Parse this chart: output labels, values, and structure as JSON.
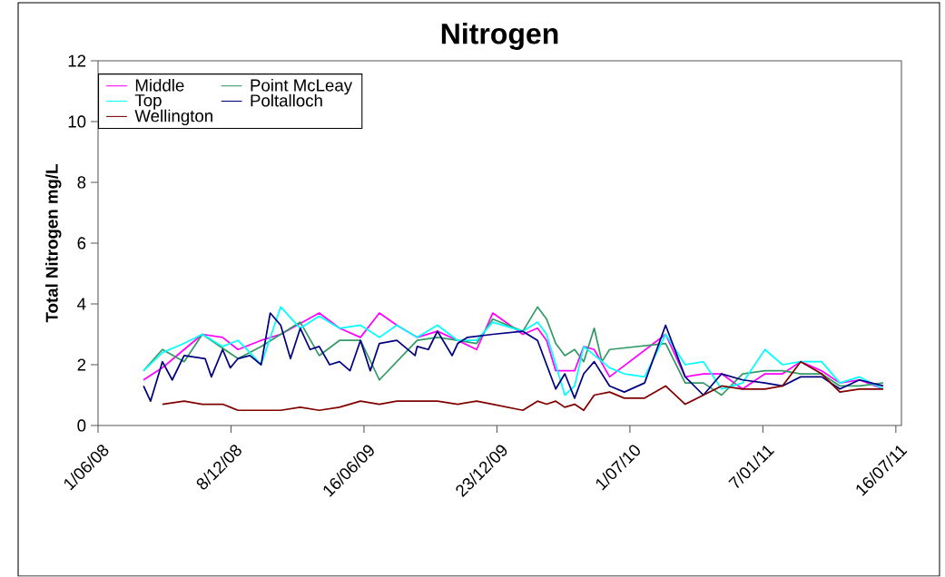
{
  "chart_data": {
    "type": "line",
    "title": "Nitrogen",
    "ylabel": "Total Nitrogen mg/L",
    "xlim": [
      "2008-06-01",
      "2011-07-24"
    ],
    "ylim": [
      0,
      12
    ],
    "yticks": [
      0,
      2,
      4,
      6,
      8,
      10,
      12
    ],
    "xticks": [
      {
        "value": "2008-06-01",
        "label": "1/06/08"
      },
      {
        "value": "2008-12-08",
        "label": "8/12/08"
      },
      {
        "value": "2009-06-16",
        "label": "16/06/09"
      },
      {
        "value": "2009-12-23",
        "label": "23/12/09"
      },
      {
        "value": "2010-07-01",
        "label": "1/07/10"
      },
      {
        "value": "2011-01-07",
        "label": "7/01/11"
      },
      {
        "value": "2011-07-16",
        "label": "16/07/11"
      }
    ],
    "legend": "top left",
    "series": [
      {
        "name": "Middle",
        "color": "#ff00ff",
        "x": [
          "2008-08-05",
          "2008-09-01",
          "2008-10-02",
          "2008-10-28",
          "2008-11-26",
          "2008-12-18",
          "2009-01-20",
          "2009-02-17",
          "2009-04-13",
          "2009-05-12",
          "2009-06-11",
          "2009-07-08",
          "2009-08-02",
          "2009-08-31",
          "2009-09-29",
          "2009-10-28",
          "2009-11-24",
          "2009-12-17",
          "2010-01-29",
          "2010-02-19",
          "2010-03-04",
          "2010-03-17",
          "2010-04-13",
          "2010-04-26",
          "2010-05-11",
          "2010-06-02",
          "2010-08-21",
          "2010-09-18",
          "2010-10-14",
          "2010-11-09",
          "2010-12-09",
          "2011-01-10",
          "2011-02-04",
          "2011-03-02",
          "2011-04-01",
          "2011-04-27",
          "2011-05-25",
          "2011-06-28"
        ],
        "values": [
          1.5,
          1.9,
          2.5,
          3.0,
          2.9,
          2.5,
          2.8,
          3.0,
          3.7,
          3.2,
          2.9,
          3.7,
          3.3,
          2.9,
          3.1,
          2.8,
          2.5,
          3.7,
          3.0,
          3.2,
          2.8,
          1.8,
          1.8,
          2.6,
          2.5,
          1.6,
          3.0,
          1.6,
          1.7,
          1.7,
          1.2,
          1.7,
          1.7,
          2.1,
          1.8,
          1.4,
          1.5,
          1.2
        ]
      },
      {
        "name": "Point McLeay",
        "color": "#339966",
        "x": [
          "2008-08-05",
          "2008-09-01",
          "2008-10-02",
          "2008-10-28",
          "2008-12-18",
          "2009-01-20",
          "2009-03-17",
          "2009-04-13",
          "2009-05-12",
          "2009-06-11",
          "2009-07-08",
          "2009-08-31",
          "2009-09-29",
          "2009-10-28",
          "2009-11-24",
          "2009-12-17",
          "2010-01-29",
          "2010-02-19",
          "2010-03-04",
          "2010-03-17",
          "2010-03-30",
          "2010-04-13",
          "2010-04-26",
          "2010-05-11",
          "2010-05-22",
          "2010-06-02",
          "2010-08-21",
          "2010-09-18",
          "2010-10-14",
          "2010-11-09",
          "2010-12-09",
          "2011-01-10",
          "2011-02-04",
          "2011-03-02",
          "2011-04-01",
          "2011-04-27",
          "2011-05-25",
          "2011-06-28"
        ],
        "values": [
          1.8,
          2.5,
          2.1,
          3.0,
          2.2,
          2.6,
          3.4,
          2.3,
          2.8,
          2.8,
          1.5,
          2.8,
          2.9,
          2.8,
          2.7,
          3.5,
          3.1,
          3.9,
          3.5,
          2.7,
          2.3,
          2.5,
          2.1,
          3.2,
          2.1,
          2.5,
          2.7,
          1.4,
          1.4,
          1.0,
          1.7,
          1.8,
          1.8,
          1.7,
          1.7,
          1.3,
          1.3,
          1.4
        ]
      },
      {
        "name": "Top",
        "color": "#00ffff",
        "x": [
          "2008-08-05",
          "2008-09-01",
          "2008-10-02",
          "2008-10-28",
          "2008-11-26",
          "2008-12-18",
          "2009-01-04",
          "2009-01-20",
          "2009-02-17",
          "2009-03-17",
          "2009-04-13",
          "2009-05-12",
          "2009-06-11",
          "2009-07-08",
          "2009-08-02",
          "2009-08-31",
          "2009-09-29",
          "2009-10-28",
          "2009-11-24",
          "2009-12-17",
          "2010-01-29",
          "2010-02-19",
          "2010-03-04",
          "2010-03-30",
          "2010-04-13",
          "2010-04-26",
          "2010-06-02",
          "2010-06-23",
          "2010-07-22",
          "2010-08-21",
          "2010-09-18",
          "2010-10-14",
          "2010-11-09",
          "2010-12-09",
          "2011-01-10",
          "2011-02-04",
          "2011-03-02",
          "2011-04-01",
          "2011-04-27",
          "2011-05-25",
          "2011-06-28"
        ],
        "values": [
          1.8,
          2.4,
          2.7,
          3.0,
          2.6,
          2.8,
          2.4,
          2.0,
          3.9,
          3.2,
          3.6,
          3.2,
          3.3,
          2.9,
          3.3,
          2.9,
          3.3,
          2.8,
          2.8,
          3.4,
          3.1,
          3.4,
          3.0,
          1.0,
          1.3,
          2.6,
          1.9,
          1.7,
          1.6,
          3.0,
          2.0,
          2.1,
          1.2,
          1.4,
          2.5,
          2.0,
          2.1,
          2.1,
          1.4,
          1.6,
          1.2
        ]
      },
      {
        "name": "Poltalloch",
        "color": "#000080",
        "x": [
          "2008-08-05",
          "2008-08-15",
          "2008-09-01",
          "2008-09-15",
          "2008-10-02",
          "2008-11-01",
          "2008-11-10",
          "2008-11-26",
          "2008-12-07",
          "2008-12-18",
          "2009-01-04",
          "2009-01-20",
          "2009-02-02",
          "2009-02-17",
          "2009-03-03",
          "2009-03-17",
          "2009-03-31",
          "2009-04-13",
          "2009-04-28",
          "2009-05-12",
          "2009-05-27",
          "2009-06-11",
          "2009-06-25",
          "2009-07-08",
          "2009-08-02",
          "2009-08-28",
          "2009-08-31",
          "2009-09-16",
          "2009-09-29",
          "2009-10-20",
          "2009-10-28",
          "2009-11-11",
          "2009-12-17",
          "2010-01-29",
          "2010-02-19",
          "2010-03-04",
          "2010-03-17",
          "2010-03-30",
          "2010-04-13",
          "2010-04-26",
          "2010-05-11",
          "2010-06-02",
          "2010-06-23",
          "2010-07-22",
          "2010-08-21",
          "2010-09-18",
          "2010-10-14",
          "2010-11-09",
          "2010-12-09",
          "2011-01-10",
          "2011-02-04",
          "2011-03-02",
          "2011-04-01",
          "2011-04-27",
          "2011-05-25",
          "2011-06-28"
        ],
        "values": [
          1.3,
          0.8,
          2.1,
          1.5,
          2.3,
          2.2,
          1.6,
          2.5,
          1.9,
          2.2,
          2.3,
          2.0,
          3.7,
          3.3,
          2.2,
          3.2,
          2.5,
          2.6,
          2.0,
          2.1,
          1.8,
          2.8,
          1.8,
          2.7,
          2.8,
          2.3,
          2.6,
          2.5,
          3.1,
          2.3,
          2.7,
          2.9,
          3.0,
          3.1,
          2.8,
          2.0,
          1.2,
          1.7,
          0.9,
          1.7,
          2.1,
          1.3,
          1.1,
          1.4,
          3.3,
          1.6,
          1.0,
          1.7,
          1.5,
          1.4,
          1.3,
          1.6,
          1.6,
          1.2,
          1.5,
          1.3
        ]
      },
      {
        "name": "Wellington",
        "color": "#800000",
        "x": [
          "2008-09-01",
          "2008-10-02",
          "2008-10-28",
          "2008-11-26",
          "2008-12-18",
          "2009-01-20",
          "2009-02-17",
          "2009-03-17",
          "2009-04-13",
          "2009-05-12",
          "2009-06-11",
          "2009-07-08",
          "2009-08-02",
          "2009-08-31",
          "2009-09-29",
          "2009-10-28",
          "2009-11-24",
          "2009-12-17",
          "2010-01-29",
          "2010-02-19",
          "2010-03-04",
          "2010-03-17",
          "2010-03-30",
          "2010-04-13",
          "2010-04-26",
          "2010-05-11",
          "2010-06-02",
          "2010-06-23",
          "2010-07-22",
          "2010-08-21",
          "2010-09-18",
          "2010-10-14",
          "2010-11-09",
          "2010-12-09",
          "2011-01-10",
          "2011-02-04",
          "2011-03-02",
          "2011-04-01",
          "2011-04-27",
          "2011-05-25",
          "2011-06-28"
        ],
        "values": [
          0.7,
          0.8,
          0.7,
          0.7,
          0.5,
          0.5,
          0.5,
          0.6,
          0.5,
          0.6,
          0.8,
          0.7,
          0.8,
          0.8,
          0.8,
          0.7,
          0.8,
          0.7,
          0.5,
          0.8,
          0.7,
          0.8,
          0.6,
          0.7,
          0.5,
          1.0,
          1.1,
          0.9,
          0.9,
          1.3,
          0.7,
          1.0,
          1.3,
          1.2,
          1.2,
          1.3,
          2.1,
          1.7,
          1.1,
          1.2,
          1.2
        ]
      }
    ]
  }
}
